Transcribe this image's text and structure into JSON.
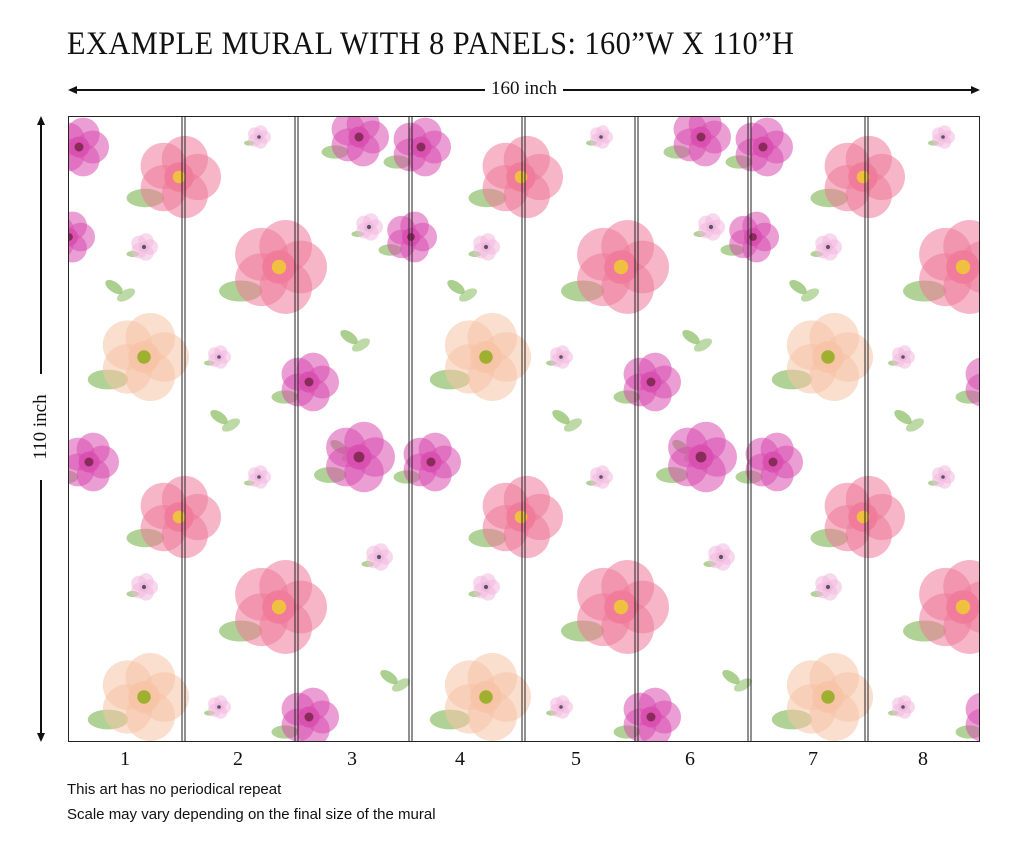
{
  "title": "EXAMPLE MURAL WITH 8 PANELS: 160”W X 110”H",
  "width_label": "160 inch",
  "height_label": "110 inch",
  "panels": [
    "1",
    "2",
    "3",
    "4",
    "5",
    "6",
    "7",
    "8"
  ],
  "notes": [
    "This art has no periodical repeat",
    "Scale may vary depending on the final size of the mural"
  ],
  "colors": {
    "rose_magenta": "#d94fb0",
    "peony_pink": "#ef7a9a",
    "peach_rose": "#f6c3a6",
    "blossom": "#f2b8de",
    "leaf": "#8fbf6a"
  }
}
